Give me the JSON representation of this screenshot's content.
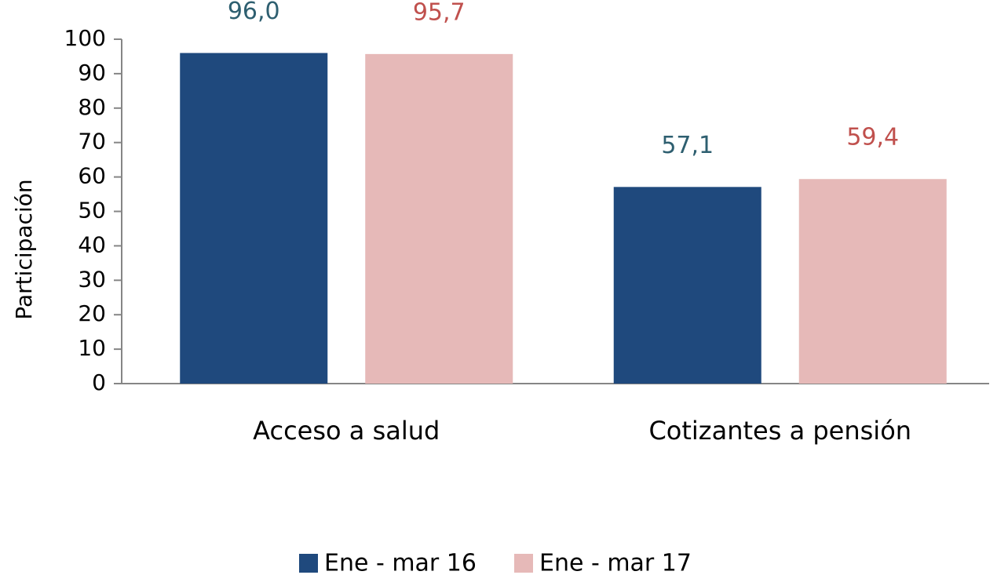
{
  "chart_data": {
    "type": "bar",
    "y_label": "Participación",
    "categories": [
      "Acceso a salud",
      "Cotizantes a pensión"
    ],
    "series": [
      {
        "name": "Ene - mar 16",
        "color": "#1f497d",
        "label_color": "#2e5f70",
        "values": [
          96.0,
          57.1
        ],
        "value_labels": [
          "96,0",
          "57,1"
        ]
      },
      {
        "name": "Ene - mar 17",
        "color": "#e6b9b8",
        "label_color": "#c0504d",
        "values": [
          95.7,
          59.4
        ],
        "value_labels": [
          "95,7",
          "59,4"
        ]
      }
    ],
    "ylim": [
      0,
      100
    ],
    "yticks": [
      0,
      10,
      20,
      30,
      40,
      50,
      60,
      70,
      80,
      90,
      100
    ],
    "grid": false,
    "legend": "bottom"
  }
}
